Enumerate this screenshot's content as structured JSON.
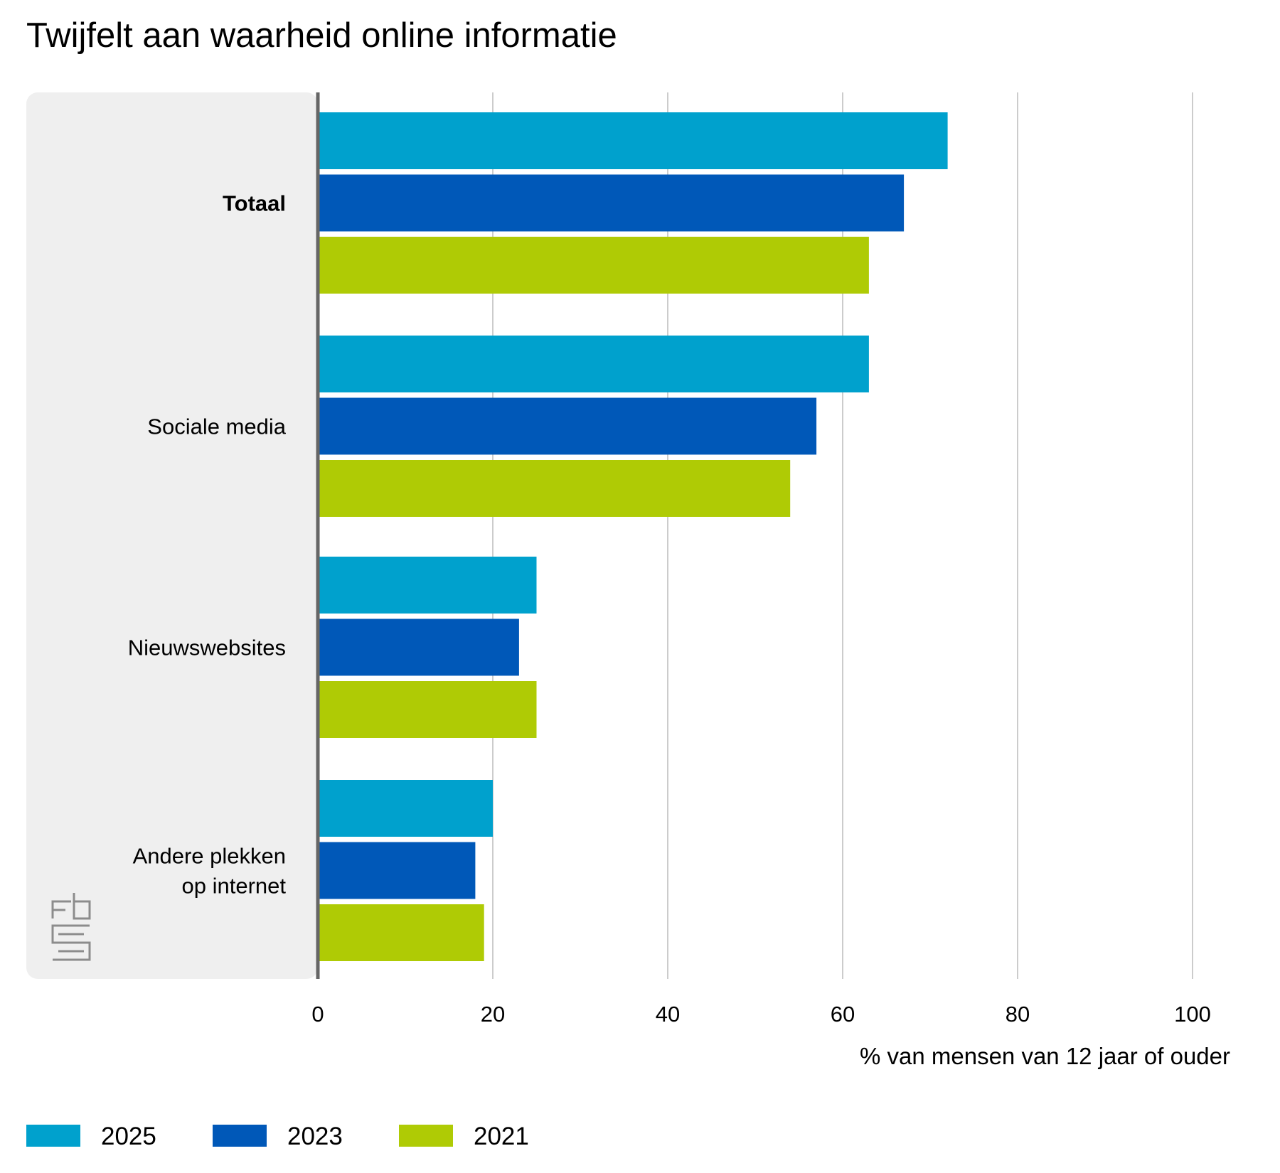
{
  "chart_data": {
    "type": "bar",
    "orientation": "horizontal",
    "title": "Twijfelt aan waarheid online informatie",
    "categories": [
      "Totaal",
      "Sociale media",
      "Nieuwswebsites",
      "Andere plekken op internet"
    ],
    "category_lines": [
      [
        "Totaal"
      ],
      [
        "Sociale media"
      ],
      [
        "Nieuwswebsites"
      ],
      [
        "Andere plekken",
        "op internet"
      ]
    ],
    "bold_categories": [
      "Totaal"
    ],
    "series": [
      {
        "name": "2025",
        "color": "#00a1cd",
        "values": [
          72,
          63,
          25,
          20
        ]
      },
      {
        "name": "2023",
        "color": "#0058b8",
        "values": [
          67,
          57,
          23,
          18
        ]
      },
      {
        "name": "2021",
        "color": "#afcb05",
        "values": [
          63,
          54,
          25,
          19
        ]
      }
    ],
    "xlabel": "% van mensen van 12 jaar of ouder",
    "ylabel": "",
    "xlim": [
      0,
      100
    ],
    "xticks": [
      0,
      20,
      40,
      60,
      80,
      100
    ],
    "grid": "vertical",
    "legend_position": "bottom-left",
    "logo": "cbs"
  }
}
